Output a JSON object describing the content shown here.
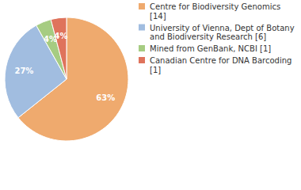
{
  "chart_data": {
    "type": "pie",
    "categories": [
      "Centre for Biodiversity Genomics [14]",
      "University of Vienna, Dept of Botany and Biodiversity Research [6]",
      "Mined from GenBank, NCBI [1]",
      "Canadian Centre for DNA Barcoding [1]"
    ],
    "values": [
      63,
      27,
      4,
      4
    ],
    "value_labels": [
      "63%",
      "27%",
      "4%",
      "4%"
    ],
    "colors": [
      "#efaa6e",
      "#a1bde0",
      "#a6cc82",
      "#df735c"
    ],
    "data_labels": true,
    "legend": "right"
  }
}
